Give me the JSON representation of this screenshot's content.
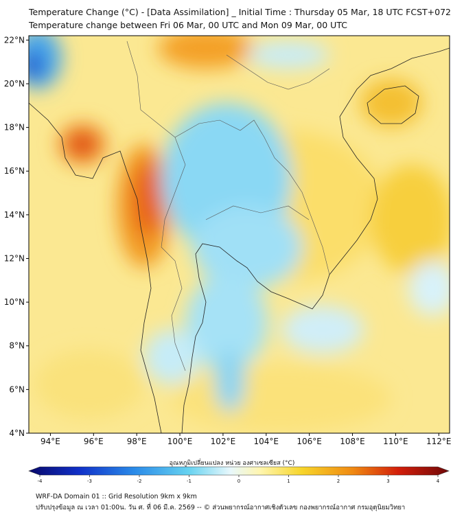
{
  "title_line1": "Temperature Change (°C) - [Data Assimilation] _ Initial Time : Thursday 05 Mar, 18 UTC FCST+072",
  "title_line2": "Temperature change between Fri 06 Mar, 00 UTC and Mon 09 Mar, 00 UTC",
  "map": {
    "lon_range": [
      93,
      112.5
    ],
    "lat_range": [
      4,
      22.2
    ],
    "lat_ticks": [
      "22°N",
      "20°N",
      "18°N",
      "16°N",
      "14°N",
      "12°N",
      "10°N",
      "8°N",
      "6°N",
      "4°N"
    ],
    "lat_values": [
      22,
      20,
      18,
      16,
      14,
      12,
      10,
      8,
      6,
      4
    ],
    "lon_ticks": [
      "94°E",
      "96°E",
      "98°E",
      "100°E",
      "102°E",
      "104°E",
      "106°E",
      "108°E",
      "110°E",
      "112°E"
    ],
    "lon_values": [
      94,
      96,
      98,
      100,
      102,
      104,
      106,
      108,
      110,
      112
    ]
  },
  "colorbar": {
    "label": "อุณหภูมิเปลี่ยนแปลง หน่วย องศาเซลเซียส (°C)",
    "ticks": [
      "-4",
      "-3",
      "-2",
      "-1",
      "0",
      "1",
      "2",
      "3",
      "4"
    ],
    "values": [
      -4,
      -3,
      -2,
      -1,
      0,
      1,
      2,
      3,
      4
    ],
    "colors": [
      "#08086a",
      "#1030c8",
      "#2a8ae8",
      "#66d2f0",
      "#e8f8fc",
      "#fff6b0",
      "#f7d52a",
      "#f08a12",
      "#d21e0a",
      "#700808"
    ]
  },
  "footer_line1": "WRF-DA Domain 01 :: Grid Resolution 9km x 9km",
  "footer_line2": "ปรับปรุงข้อมูล ณ เวลา 01:00น. วัน ศ. ที่ 06 มี.ค. 2569 -- © ส่วนพยากรณ์อากาศเชิงตัวเลข กองพยากรณ์อากาศ กรมอุตุนิยมวิทยา"
}
